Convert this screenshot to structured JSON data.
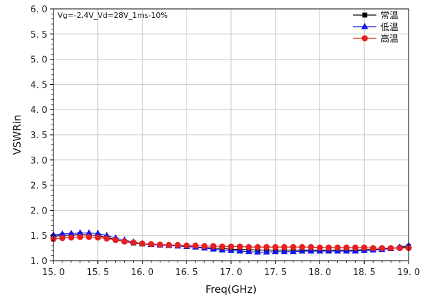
{
  "chart_data": {
    "type": "line",
    "title": "",
    "annotation": "Vg=-2.4V_Vd=28V_1ms-10%",
    "xlabel": "Freq(GHz)",
    "ylabel": "VSWRin",
    "xlim": [
      15.0,
      19.0
    ],
    "ylim": [
      1.0,
      6.0
    ],
    "xticks": [
      "15. 0",
      "15. 5",
      "16. 0",
      "16. 5",
      "17. 0",
      "17. 5",
      "18. 0",
      "18. 5",
      "19. 0"
    ],
    "yticks": [
      "1. 0",
      "1. 5",
      "2. 0",
      "2. 5",
      "3. 0",
      "3. 5",
      "4. 0",
      "4. 5",
      "5. 0",
      "5. 5",
      "6. 0"
    ],
    "grid": true,
    "legend_position": "top-right",
    "x": [
      15.0,
      15.1,
      15.2,
      15.3,
      15.4,
      15.5,
      15.6,
      15.7,
      15.8,
      15.9,
      16.0,
      16.1,
      16.2,
      16.3,
      16.4,
      16.5,
      16.6,
      16.7,
      16.8,
      16.9,
      17.0,
      17.1,
      17.2,
      17.3,
      17.4,
      17.5,
      17.6,
      17.7,
      17.8,
      17.9,
      18.0,
      18.1,
      18.2,
      18.3,
      18.4,
      18.5,
      18.6,
      18.7,
      18.8,
      18.9,
      19.0
    ],
    "series": [
      {
        "name": "常温",
        "color": "#000000",
        "marker": "square",
        "values": [
          1.48,
          1.5,
          1.51,
          1.52,
          1.51,
          1.5,
          1.46,
          1.42,
          1.38,
          1.35,
          1.33,
          1.32,
          1.31,
          1.3,
          1.29,
          1.28,
          1.27,
          1.26,
          1.25,
          1.24,
          1.23,
          1.22,
          1.22,
          1.21,
          1.21,
          1.21,
          1.21,
          1.21,
          1.21,
          1.21,
          1.21,
          1.21,
          1.21,
          1.21,
          1.21,
          1.22,
          1.22,
          1.23,
          1.24,
          1.26,
          1.28
        ]
      },
      {
        "name": "低温",
        "color": "#1414e6",
        "marker": "triangle",
        "values": [
          1.51,
          1.53,
          1.54,
          1.55,
          1.55,
          1.54,
          1.5,
          1.45,
          1.41,
          1.37,
          1.34,
          1.32,
          1.31,
          1.3,
          1.29,
          1.28,
          1.27,
          1.25,
          1.23,
          1.21,
          1.2,
          1.19,
          1.18,
          1.17,
          1.17,
          1.18,
          1.18,
          1.18,
          1.19,
          1.19,
          1.19,
          1.19,
          1.19,
          1.19,
          1.19,
          1.2,
          1.21,
          1.22,
          1.24,
          1.27,
          1.3
        ]
      },
      {
        "name": "高温",
        "color": "#e62020",
        "marker": "circle",
        "values": [
          1.43,
          1.45,
          1.46,
          1.47,
          1.47,
          1.46,
          1.44,
          1.41,
          1.38,
          1.36,
          1.34,
          1.33,
          1.32,
          1.31,
          1.31,
          1.3,
          1.3,
          1.29,
          1.29,
          1.28,
          1.28,
          1.28,
          1.27,
          1.27,
          1.27,
          1.27,
          1.27,
          1.27,
          1.27,
          1.27,
          1.26,
          1.26,
          1.26,
          1.26,
          1.26,
          1.26,
          1.25,
          1.25,
          1.25,
          1.25,
          1.25
        ]
      }
    ]
  }
}
